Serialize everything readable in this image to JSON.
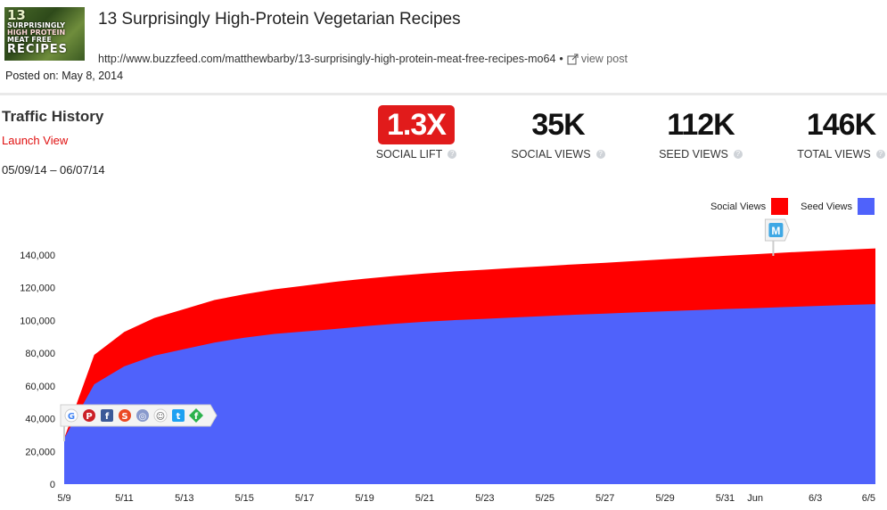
{
  "post": {
    "thumbnail_lines": [
      "13",
      "SURPRISINGLY",
      "HIGH PROTEIN",
      "MEAT FREE",
      "RECIPES"
    ],
    "title": "13 Surprisingly High-Protein Vegetarian Recipes",
    "url": "http://www.buzzfeed.com/matthewbarby/13-surprisingly-high-protein-meat-free-recipes-mo64",
    "separator": "•",
    "view_post_label": "view post",
    "posted_label": "Posted on: May 8, 2014"
  },
  "section": {
    "title": "Traffic History",
    "launch_view": "Launch View",
    "date_range": "05/09/14 – 06/07/14"
  },
  "metrics": {
    "social_lift": {
      "value": "1.3X",
      "label": "SOCIAL LIFT"
    },
    "social_views": {
      "value": "35K",
      "label": "SOCIAL VIEWS"
    },
    "seed_views": {
      "value": "112K",
      "label": "SEED VIEWS"
    },
    "total_views": {
      "value": "146K",
      "label": "TOTAL VIEWS"
    }
  },
  "colors": {
    "social": "#ff0000",
    "seed": "#4f62fb",
    "lift_bg": "#e11b1b"
  },
  "marker_icons": [
    "google-icon",
    "pinterest-icon",
    "facebook-icon",
    "stumbleupon-icon",
    "web-icon",
    "reddit-icon",
    "twitter-icon",
    "feedly-icon"
  ],
  "marker_m": {
    "label": "M",
    "icon": "medium-icon"
  },
  "chart_data": {
    "type": "area",
    "stacked": true,
    "xlabel": "",
    "ylabel": "",
    "ylim": [
      0,
      145000
    ],
    "yticks": [
      "0",
      "20,000",
      "40,000",
      "60,000",
      "80,000",
      "100,000",
      "120,000",
      "140,000"
    ],
    "ytick_values": [
      0,
      20000,
      40000,
      60000,
      80000,
      100000,
      120000,
      140000
    ],
    "xticks": [
      "5/9",
      "5/11",
      "5/13",
      "5/15",
      "5/17",
      "5/19",
      "5/21",
      "5/23",
      "5/25",
      "5/27",
      "5/29",
      "5/31",
      "Jun",
      "6/3",
      "6/5"
    ],
    "xtick_days": [
      0,
      2,
      4,
      6,
      8,
      10,
      12,
      14,
      16,
      18,
      20,
      22,
      23,
      25,
      27
    ],
    "x_range": [
      0,
      27
    ],
    "grid": false,
    "legend": "top-right",
    "x_days": [
      0,
      1,
      2,
      3,
      4,
      5,
      6,
      7,
      8,
      9,
      10,
      11,
      12,
      13,
      14,
      15,
      16,
      17,
      18,
      19,
      20,
      21,
      22,
      23,
      24,
      25,
      26,
      27
    ],
    "series": [
      {
        "name": "Seed Views",
        "values": [
          28000,
          61000,
          72000,
          78500,
          82500,
          86500,
          89500,
          91800,
          93300,
          94800,
          96500,
          98000,
          99200,
          100200,
          101000,
          101900,
          102700,
          103500,
          104200,
          104900,
          105600,
          106300,
          107000,
          107500,
          108200,
          108800,
          109400,
          110000
        ]
      },
      {
        "name": "Social Views",
        "values": [
          0,
          18000,
          21000,
          23000,
          24500,
          26000,
          26500,
          27200,
          28000,
          28800,
          29000,
          29200,
          29500,
          29800,
          30000,
          30300,
          30500,
          30800,
          31000,
          31400,
          31800,
          32200,
          32500,
          33000,
          33300,
          33600,
          33800,
          34000
        ]
      }
    ]
  }
}
